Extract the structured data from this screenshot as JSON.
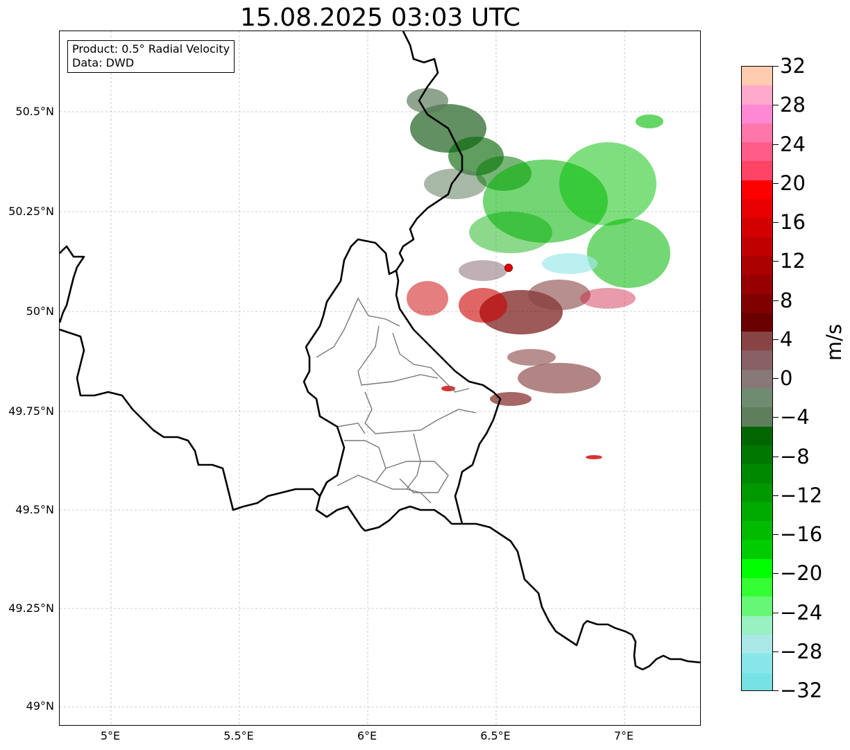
{
  "title": "15.08.2025 03:03 UTC",
  "info_box": {
    "product": "Product: 0.5° Radial Velocity",
    "data": "Data: DWD"
  },
  "lat_labels": [
    "50.5°N",
    "50.25°N",
    "50°N",
    "49.75°N",
    "49.5°N",
    "49.25°N",
    "49°N"
  ],
  "lon_labels": [
    "5°E",
    "5.5°E",
    "6°E",
    "6.5°E",
    "7°E"
  ],
  "colorbar": {
    "unit": "m/s",
    "ticks": [
      "32",
      "28",
      "24",
      "20",
      "16",
      "12",
      "8",
      "4",
      "0",
      "−4",
      "−8",
      "−12",
      "−16",
      "−20",
      "−24",
      "−28",
      "−32"
    ],
    "min": -32,
    "max": 32,
    "colors_top_to_bottom": [
      "#ffccb0",
      "#ffaacc",
      "#ff88d4",
      "#ff77aa",
      "#ff5c8a",
      "#ff4466",
      "#ff0000",
      "#e80000",
      "#d30000",
      "#c00000",
      "#aa0000",
      "#960000",
      "#800000",
      "#6a0000",
      "#884444",
      "#886066",
      "#887878",
      "#708c70",
      "#5e7e5c",
      "#006600",
      "#007700",
      "#008800",
      "#009900",
      "#00aa00",
      "#00bb00",
      "#00cc00",
      "#00ff00",
      "#33ff33",
      "#66f777",
      "#99f0c0",
      "#aae8e8",
      "#88e6e8",
      "#77e2e4"
    ]
  },
  "map": {
    "radar_site": {
      "lon": 6.55,
      "lat": 50.11
    },
    "lon_range": [
      4.8,
      7.3
    ],
    "lat_range": [
      48.95,
      50.7
    ],
    "grid": true
  }
}
